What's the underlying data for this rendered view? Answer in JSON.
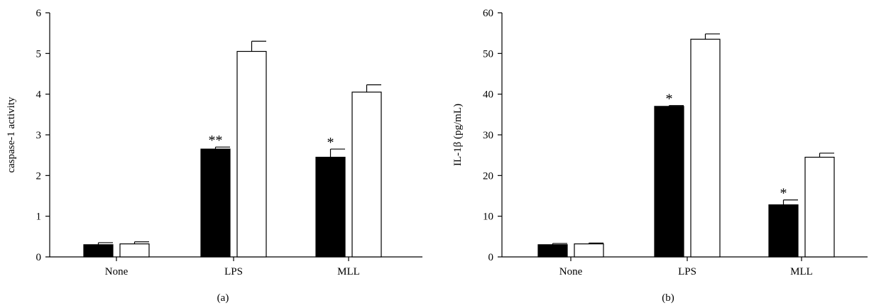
{
  "chart_data": [
    {
      "type": "bar",
      "panel_label": "(a)",
      "title": "",
      "xlabel": "",
      "ylabel": "caspase-1 activity",
      "ylim": [
        0,
        6
      ],
      "yticks": [
        "0",
        "1",
        "2",
        "3",
        "4",
        "5",
        "6"
      ],
      "categories": [
        "None",
        "LPS",
        "MLL"
      ],
      "series": [
        {
          "fill": "#000000",
          "values": [
            0.3,
            2.65,
            2.45
          ],
          "errors": [
            0.05,
            0.05,
            0.2
          ]
        },
        {
          "fill": "#ffffff",
          "values": [
            0.32,
            5.05,
            4.05
          ],
          "errors": [
            0.05,
            0.25,
            0.18
          ]
        }
      ],
      "annotations": [
        {
          "series": 0,
          "category": 1,
          "text": "**"
        },
        {
          "series": 0,
          "category": 2,
          "text": "*"
        }
      ],
      "grid": false,
      "legend": "none"
    },
    {
      "type": "bar",
      "panel_label": "(b)",
      "title": "",
      "xlabel": "",
      "ylabel": "IL-1β (pg/mL)",
      "ylim": [
        0,
        60
      ],
      "yticks": [
        "0",
        "10",
        "20",
        "30",
        "40",
        "50",
        "60"
      ],
      "categories": [
        "None",
        "LPS",
        "MLL"
      ],
      "series": [
        {
          "fill": "#000000",
          "values": [
            3.0,
            37.0,
            12.8
          ],
          "errors": [
            0.3,
            0.2,
            1.2
          ]
        },
        {
          "fill": "#ffffff",
          "values": [
            3.2,
            53.5,
            24.5
          ],
          "errors": [
            0.2,
            1.3,
            1.0
          ]
        }
      ],
      "annotations": [
        {
          "series": 0,
          "category": 1,
          "text": "*"
        },
        {
          "series": 0,
          "category": 2,
          "text": "*"
        }
      ],
      "grid": false,
      "legend": "none"
    }
  ]
}
